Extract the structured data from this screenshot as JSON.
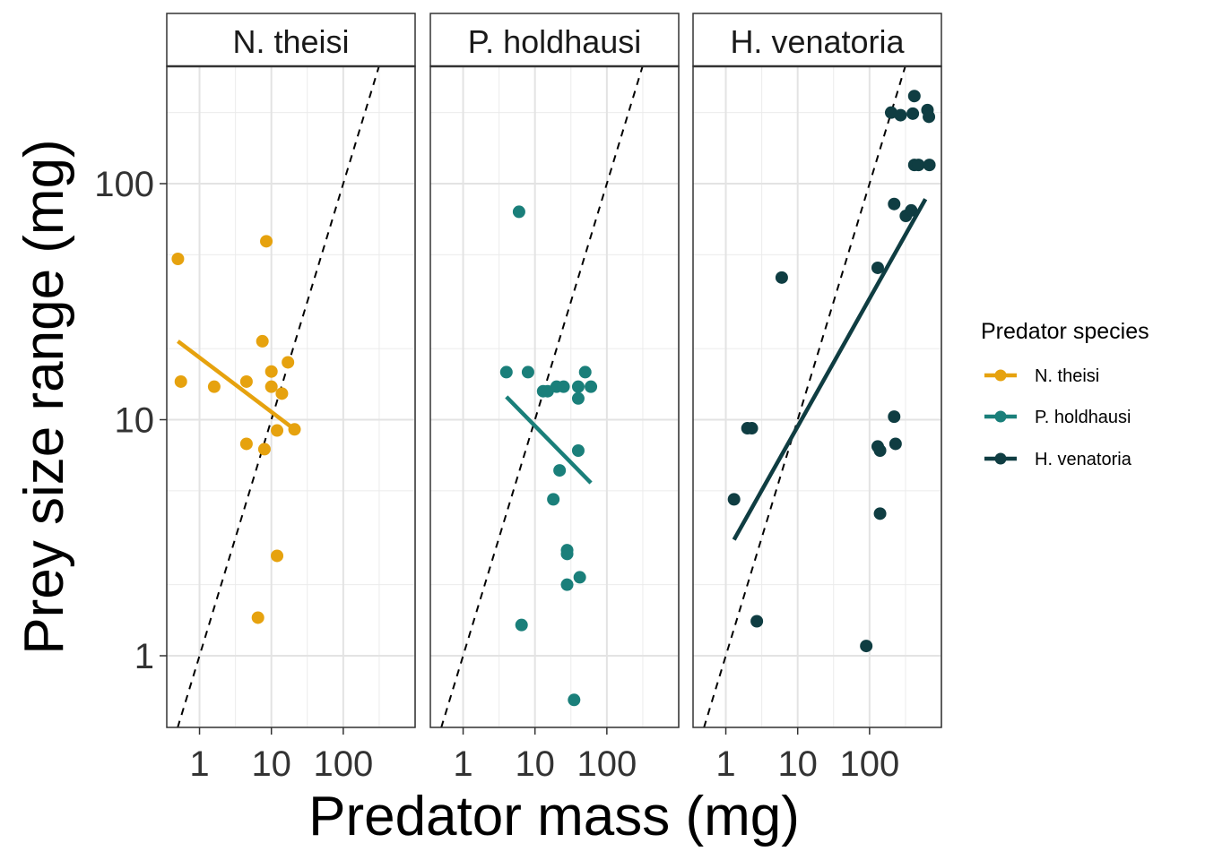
{
  "chart_data": {
    "type": "scatter",
    "xlabel": "Predator mass (mg)",
    "ylabel": "Prey size range (mg)",
    "x_scale": "log10",
    "y_scale": "log10",
    "xlim": [
      0.35,
      1000
    ],
    "ylim": [
      0.5,
      300
    ],
    "x_ticks": [
      1,
      10,
      100
    ],
    "x_tick_labels": [
      "1",
      "10",
      "100"
    ],
    "y_ticks": [
      1,
      10,
      100
    ],
    "y_tick_labels": [
      "1",
      "10",
      "100"
    ],
    "grid": true,
    "reference_line": {
      "style": "dashed",
      "relation": "y = x"
    },
    "legend": {
      "title": "Predator species",
      "position": "right",
      "entries": [
        "N. theisi",
        "P. holdhausi",
        "H. venatoria"
      ]
    },
    "panels": [
      {
        "name": "N. theisi",
        "color": "#E6A20E",
        "points": [
          [
            0.5,
            48
          ],
          [
            0.55,
            14.5
          ],
          [
            1.6,
            13.8
          ],
          [
            4.5,
            14.5
          ],
          [
            4.5,
            7.9
          ],
          [
            7.5,
            21.5
          ],
          [
            8.5,
            57
          ],
          [
            8,
            7.5
          ],
          [
            10,
            16
          ],
          [
            10,
            13.8
          ],
          [
            12,
            9
          ],
          [
            14,
            12.9
          ],
          [
            17,
            17.5
          ],
          [
            21,
            9.1
          ],
          [
            12,
            2.65
          ],
          [
            6.5,
            1.45
          ]
        ],
        "fit": [
          [
            0.5,
            21.5
          ],
          [
            20,
            9.2
          ]
        ]
      },
      {
        "name": "P. holdhausi",
        "color": "#1A7F7A",
        "points": [
          [
            6,
            76
          ],
          [
            4,
            15.9
          ],
          [
            8,
            15.9
          ],
          [
            13,
            13.2
          ],
          [
            15,
            13.2
          ],
          [
            20,
            13.8
          ],
          [
            25,
            13.8
          ],
          [
            40,
            13.8
          ],
          [
            50,
            15.9
          ],
          [
            60,
            13.8
          ],
          [
            40,
            12.3
          ],
          [
            40,
            7.4
          ],
          [
            22,
            6.1
          ],
          [
            18,
            4.6
          ],
          [
            28,
            2.8
          ],
          [
            28,
            2.7
          ],
          [
            42,
            2.15
          ],
          [
            28,
            2.0
          ],
          [
            6.5,
            1.35
          ],
          [
            35,
            0.65
          ]
        ],
        "fit": [
          [
            4,
            12.5
          ],
          [
            60,
            5.4
          ]
        ]
      },
      {
        "name": "H. venatoria",
        "color": "#0F3D42",
        "points": [
          [
            200,
            200
          ],
          [
            270,
            195
          ],
          [
            400,
            198
          ],
          [
            420,
            235
          ],
          [
            640,
            205
          ],
          [
            670,
            192
          ],
          [
            420,
            120
          ],
          [
            480,
            120
          ],
          [
            680,
            120
          ],
          [
            220,
            82
          ],
          [
            320,
            73
          ],
          [
            380,
            77
          ],
          [
            130,
            44
          ],
          [
            6,
            40
          ],
          [
            220,
            10.3
          ],
          [
            2,
            9.2
          ],
          [
            2.3,
            9.2
          ],
          [
            130,
            7.7
          ],
          [
            140,
            7.4
          ],
          [
            230,
            7.9
          ],
          [
            1.3,
            4.6
          ],
          [
            140,
            4.0
          ],
          [
            2.7,
            1.4
          ],
          [
            90,
            1.1
          ]
        ],
        "fit": [
          [
            1.3,
            3.1
          ],
          [
            600,
            86
          ]
        ]
      }
    ]
  }
}
